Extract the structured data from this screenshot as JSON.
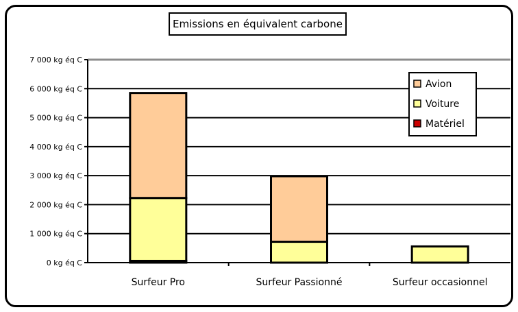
{
  "chart_data": {
    "type": "bar",
    "stacked": true,
    "title": "Emissions en équivalent carbone",
    "categories": [
      "Surfeur Pro",
      "Surfeur Passionné",
      "Surfeur occasionnel"
    ],
    "series": [
      {
        "name": "Matériel",
        "color": "#cc0000",
        "values": [
          60,
          0,
          0
        ]
      },
      {
        "name": "Voiture",
        "color": "#ffff99",
        "values": [
          2170,
          720,
          560
        ]
      },
      {
        "name": "Avion",
        "color": "#ffcc99",
        "values": [
          3620,
          2260,
          0
        ]
      }
    ],
    "ylim": [
      0,
      7000
    ],
    "yticks": [
      0,
      1000,
      2000,
      3000,
      4000,
      5000,
      6000,
      7000
    ],
    "ytick_labels": [
      "0 kg éq C",
      "1 000 kg éq C",
      "2 000 kg éq C",
      "3 000 kg éq C",
      "4 000 kg éq C",
      "5 000 kg éq C",
      "6 000 kg éq C",
      "7 000 kg éq C"
    ],
    "grid": true,
    "legend_position": "top-right",
    "legend_order": [
      "Avion",
      "Voiture",
      "Matériel"
    ],
    "xlabel": "",
    "ylabel": ""
  }
}
